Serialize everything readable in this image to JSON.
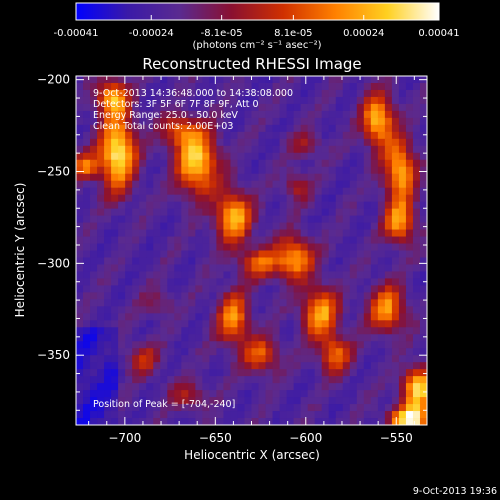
{
  "colorbar": {
    "ticks": [
      "-0.00041",
      "-0.00024",
      "-8.1e-05",
      "8.1e-05",
      "0.00024",
      "0.00041"
    ],
    "tick_values": [
      -0.00041,
      -0.00024,
      -8.1e-05,
      8.1e-05,
      0.00024,
      0.00041
    ],
    "range": [
      -0.00041,
      0.00041
    ],
    "unit_label": "(photons cm⁻² s⁻¹ asec⁻²)",
    "colors": [
      "#0000ff",
      "#3a1aa8",
      "#5a2a90",
      "#8a1030",
      "#d03000",
      "#ff8000",
      "#ffd020",
      "#ffffff"
    ]
  },
  "chart_data": {
    "type": "heatmap",
    "title": "Reconstructed RHESSI Image",
    "xlabel": "Heliocentric X (arcsec)",
    "ylabel": "Heliocentric Y (arcsec)",
    "xlim": [
      -727,
      -533
    ],
    "ylim": [
      -388,
      -198
    ],
    "x_ticks": [
      -700,
      -650,
      -600,
      -550
    ],
    "x_tick_labels": [
      "−700",
      "−650",
      "−600",
      "−550"
    ],
    "y_ticks": [
      -200,
      -250,
      -300,
      -350
    ],
    "y_tick_labels": [
      "−200",
      "−250",
      "−300",
      "−350"
    ],
    "annotations": [
      "9-Oct-2013 14:36:48.000 to 14:38:08.000",
      "Detectors: 3F 5F 6F 7F 8F 9F, Att 0",
      "Energy Range: 25.0 - 50.0 keV",
      "Clean    Total counts: 2.00E+03"
    ],
    "peak_label": "Position of Peak = [-704,-240]",
    "peak": [
      -704,
      -240
    ],
    "sources": [
      {
        "x": -704,
        "y": -240,
        "amp": 1.0,
        "sx": 7,
        "sy": 14
      },
      {
        "x": -707,
        "y": -210,
        "amp": 0.75,
        "sx": 6,
        "sy": 7
      },
      {
        "x": -722,
        "y": -247,
        "amp": 0.6,
        "sx": 5,
        "sy": 5
      },
      {
        "x": -660,
        "y": -245,
        "amp": 0.9,
        "sx": 8,
        "sy": 12
      },
      {
        "x": -670,
        "y": -228,
        "amp": 0.5,
        "sx": 7,
        "sy": 6
      },
      {
        "x": -640,
        "y": -275,
        "amp": 0.8,
        "sx": 7,
        "sy": 10
      },
      {
        "x": -625,
        "y": -300,
        "amp": 0.55,
        "sx": 8,
        "sy": 6
      },
      {
        "x": -640,
        "y": -330,
        "amp": 0.7,
        "sx": 6,
        "sy": 10
      },
      {
        "x": -625,
        "y": -350,
        "amp": 0.55,
        "sx": 7,
        "sy": 7
      },
      {
        "x": -606,
        "y": -297,
        "amp": 0.75,
        "sx": 7,
        "sy": 8
      },
      {
        "x": -592,
        "y": -327,
        "amp": 0.75,
        "sx": 7,
        "sy": 10
      },
      {
        "x": -584,
        "y": -350,
        "amp": 0.6,
        "sx": 6,
        "sy": 7
      },
      {
        "x": -560,
        "y": -222,
        "amp": 0.85,
        "sx": 6,
        "sy": 10
      },
      {
        "x": -548,
        "y": -250,
        "amp": 0.8,
        "sx": 6,
        "sy": 12
      },
      {
        "x": -548,
        "y": -278,
        "amp": 0.7,
        "sx": 6,
        "sy": 8
      },
      {
        "x": -555,
        "y": -325,
        "amp": 0.7,
        "sx": 7,
        "sy": 9
      },
      {
        "x": -538,
        "y": -368,
        "amp": 0.9,
        "sx": 6,
        "sy": 8
      },
      {
        "x": -542,
        "y": -385,
        "amp": 1.0,
        "sx": 8,
        "sy": 5
      },
      {
        "x": -690,
        "y": -352,
        "amp": 0.4,
        "sx": 6,
        "sy": 6
      },
      {
        "x": -665,
        "y": -372,
        "amp": 0.35,
        "sx": 7,
        "sy": 5
      },
      {
        "x": -600,
        "y": -235,
        "amp": 0.3,
        "sx": 6,
        "sy": 5
      },
      {
        "x": -605,
        "y": -258,
        "amp": 0.35,
        "sx": 5,
        "sy": 6
      },
      {
        "x": -682,
        "y": -322,
        "amp": 0.25,
        "sx": 6,
        "sy": 5
      }
    ]
  },
  "footer": {
    "timestamp": "9-Oct-2013 19:36"
  }
}
